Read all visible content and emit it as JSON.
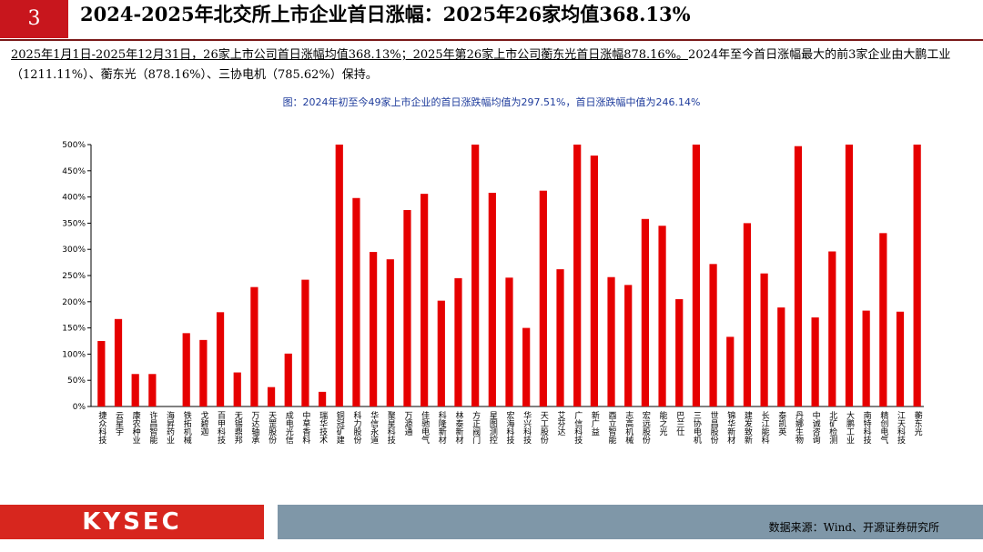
{
  "header": {
    "number": "3",
    "title": "2024-2025年北交所上市企业首日涨幅：2025年26家均值368.13%"
  },
  "summary": {
    "underlined": "2025年1月1日-2025年12月31日，26家上市公司首日涨幅均值368.13%；2025年第26家上市公司蘅东光首日涨幅878.16%。",
    "rest": "2024年至今首日涨幅最大的前3家企业由大鹏工业（1211.11%）、蘅东光（878.16%）、三协电机（785.62%）保持。"
  },
  "chart_data": {
    "type": "bar",
    "title": "图：2024年初至今49家上市企业的首日涨跌幅均值为297.51%，首日涨跌幅中值为246.14%",
    "color": "#e60000",
    "categories": [
      "捷众科技",
      "云星宇",
      "康农种业",
      "许昌智能",
      "海昇药业",
      "铁拓机械",
      "戈碧迦",
      "百甲科技",
      "无锡鼎邦",
      "万达轴承",
      "天罡股份",
      "成电光信",
      "中草香料",
      "瑞华技术",
      "铜冠矿建",
      "科力股份",
      "华信永道",
      "聚星科技",
      "万源通",
      "佳驰电气",
      "科隆新材",
      "林泰新材",
      "方正阀门",
      "星图测控",
      "宏海科技",
      "华兴科技",
      "天工股份",
      "艾芬达",
      "广信科技",
      "新广益",
      "酉立智能",
      "志高机械",
      "宏远股份",
      "能之光",
      "巴兰仕",
      "三协电机",
      "世昌股份",
      "锦华新材",
      "建发致新",
      "长江能科",
      "泰凯英",
      "丹娜生物",
      "中诚咨询",
      "北矿检测",
      "大鹏工业",
      "南特科技",
      "精创电气",
      "江天科技",
      "蘅东光"
    ],
    "values": [
      125,
      167,
      62,
      62,
      0,
      140,
      127,
      180,
      65,
      228,
      37,
      101,
      242,
      28,
      500,
      398,
      295,
      281,
      375,
      406,
      202,
      245,
      500,
      408,
      246,
      150,
      412,
      262,
      500,
      479,
      247,
      232,
      358,
      345,
      205,
      500,
      272,
      133,
      350,
      254,
      189,
      497,
      170,
      296,
      500,
      183,
      331,
      181,
      500
    ],
    "ylim": [
      0,
      500
    ],
    "yticks": [
      {
        "value": 0,
        "label": "0%"
      },
      {
        "value": 50,
        "label": "50%"
      },
      {
        "value": 100,
        "label": "100%"
      },
      {
        "value": 150,
        "label": "150%"
      },
      {
        "value": 200,
        "label": "200%"
      },
      {
        "value": 250,
        "label": "250%"
      },
      {
        "value": 300,
        "label": "300%"
      },
      {
        "value": 350,
        "label": "350%"
      },
      {
        "value": 400,
        "label": "400%"
      },
      {
        "value": 450,
        "label": "450%"
      },
      {
        "value": 500,
        "label": "500%"
      }
    ]
  },
  "footer": {
    "logo": "KYSEC",
    "source": "数据来源：Wind、开源证券研究所"
  }
}
